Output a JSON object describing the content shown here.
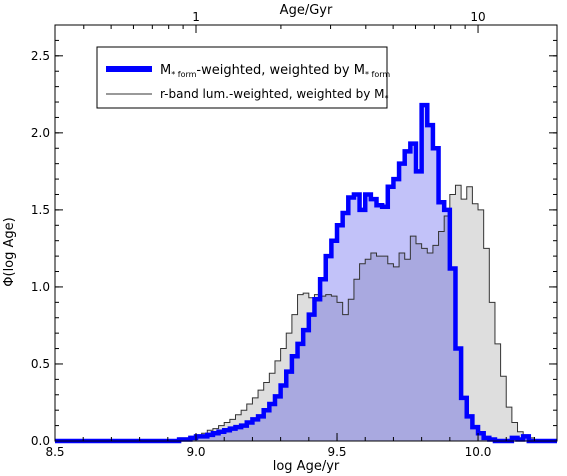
{
  "chart_data": {
    "type": "histogram",
    "title": "",
    "xlabel": "log Age/yr",
    "ylabel": "Φ(log Age)",
    "top_axis_label": "Age/Gyr",
    "xlim": [
      8.5,
      10.28
    ],
    "ylim": [
      0,
      2.7
    ],
    "xticks": [
      8.5,
      9.0,
      9.5,
      10.0
    ],
    "xtick_labels": [
      "8.5",
      "9.0",
      "9.5",
      "10.0"
    ],
    "yticks": [
      0.0,
      0.5,
      1.0,
      1.5,
      2.0,
      2.5
    ],
    "ytick_labels": [
      "0.0",
      "0.5",
      "1.0",
      "1.5",
      "2.0",
      "2.5"
    ],
    "top_ticks": [
      1,
      10
    ],
    "top_tick_labels": [
      "1",
      "10"
    ],
    "grid": false,
    "legend_position": "top-left",
    "bin_start": 8.5,
    "bin_width": 0.02,
    "series": [
      {
        "name": "r-band lum.-weighted, weighted by M*",
        "legend_main": "r-band lum.-weighted, weighted by M",
        "legend_sub": "*",
        "style": "thin",
        "line_color": "#333333",
        "fill_color": "#dedede",
        "values": [
          0.0,
          0.0,
          0.0,
          0.0,
          0.0,
          0.0,
          0.0,
          0.0,
          0.0,
          0.0,
          0.0,
          0.0,
          0.0,
          0.0,
          0.0,
          0.0,
          0.0,
          0.0,
          0.0,
          0.0,
          0.01,
          0.01,
          0.02,
          0.02,
          0.03,
          0.04,
          0.05,
          0.07,
          0.08,
          0.1,
          0.12,
          0.14,
          0.17,
          0.2,
          0.24,
          0.28,
          0.33,
          0.38,
          0.44,
          0.52,
          0.6,
          0.7,
          0.82,
          0.95,
          0.96,
          0.93,
          0.95,
          0.94,
          0.95,
          0.94,
          0.9,
          0.82,
          0.92,
          1.05,
          1.15,
          1.18,
          1.22,
          1.2,
          1.2,
          1.15,
          1.13,
          1.22,
          1.18,
          1.33,
          1.28,
          1.25,
          1.22,
          1.27,
          1.36,
          1.46,
          1.6,
          1.66,
          1.57,
          1.65,
          1.54,
          1.5,
          1.25,
          0.9,
          0.63,
          0.42,
          0.22,
          0.12,
          0.06,
          0.04,
          0.02,
          0.0,
          0.0,
          0.0,
          0.0
        ]
      },
      {
        "name": "M* form-weighted, weighted by M* form",
        "legend_main_a": "M",
        "legend_sub_a": "* form",
        "legend_main_b": "-weighted, weighted by M",
        "legend_sub_b": "* form",
        "style": "thick",
        "line_color": "#0000ff",
        "fill_color": "rgba(0,0,230,0.24)",
        "values": [
          0.0,
          0.0,
          0.0,
          0.0,
          0.0,
          0.0,
          0.0,
          0.0,
          0.0,
          0.0,
          0.0,
          0.0,
          0.0,
          0.0,
          0.0,
          0.0,
          0.0,
          0.0,
          0.0,
          0.0,
          0.0,
          0.0,
          0.01,
          0.01,
          0.02,
          0.03,
          0.03,
          0.04,
          0.05,
          0.06,
          0.07,
          0.08,
          0.09,
          0.1,
          0.12,
          0.14,
          0.16,
          0.2,
          0.24,
          0.29,
          0.36,
          0.45,
          0.55,
          0.63,
          0.72,
          0.82,
          0.92,
          1.05,
          1.2,
          1.3,
          1.4,
          1.48,
          1.58,
          1.6,
          1.5,
          1.6,
          1.57,
          1.53,
          1.52,
          1.65,
          1.7,
          1.8,
          1.88,
          1.93,
          1.75,
          2.18,
          2.05,
          1.9,
          1.55,
          1.5,
          1.12,
          0.6,
          0.28,
          0.16,
          0.09,
          0.05,
          0.02,
          0.01,
          0.0,
          0.0,
          0.0,
          0.02,
          0.01,
          0.03,
          0.0,
          0.0,
          0.0,
          0.0,
          0.0
        ]
      }
    ]
  }
}
